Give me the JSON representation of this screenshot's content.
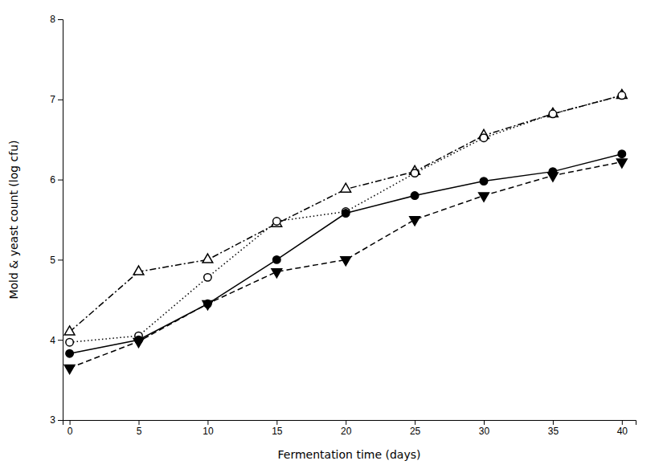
{
  "chart_data": {
    "type": "line",
    "xlabel": "Fermentation time (days)",
    "ylabel": "Mold & yeast count (log cfu)",
    "x": [
      0,
      5,
      10,
      15,
      20,
      25,
      30,
      35,
      40
    ],
    "series": [
      {
        "color": "#000000",
        "marker": "triangle-up-open",
        "line_style": "dashdot",
        "values": [
          4.1,
          4.85,
          5.0,
          5.45,
          5.88,
          6.1,
          6.55,
          6.82,
          7.05
        ]
      },
      {
        "color": "#000000",
        "marker": "circle-open",
        "line_style": "dotted",
        "values": [
          3.97,
          4.05,
          4.78,
          5.48,
          5.6,
          6.08,
          6.52,
          6.82,
          7.05
        ]
      },
      {
        "color": "#000000",
        "marker": "circle",
        "line_style": "solid",
        "values": [
          3.83,
          4.0,
          4.45,
          5.0,
          5.58,
          5.8,
          5.98,
          6.1,
          6.32
        ]
      },
      {
        "color": "#000000",
        "marker": "triangle-down",
        "line_style": "dashed",
        "values": [
          3.65,
          3.98,
          4.45,
          4.85,
          5.0,
          5.5,
          5.8,
          6.05,
          6.22
        ]
      }
    ],
    "xlim": [
      -0.5,
      41
    ],
    "ylim": [
      3,
      8
    ],
    "xticks": [
      0,
      5,
      10,
      15,
      20,
      25,
      30,
      35,
      40
    ],
    "yticks": [
      3,
      4,
      5,
      6,
      7,
      8
    ],
    "grid": false
  }
}
